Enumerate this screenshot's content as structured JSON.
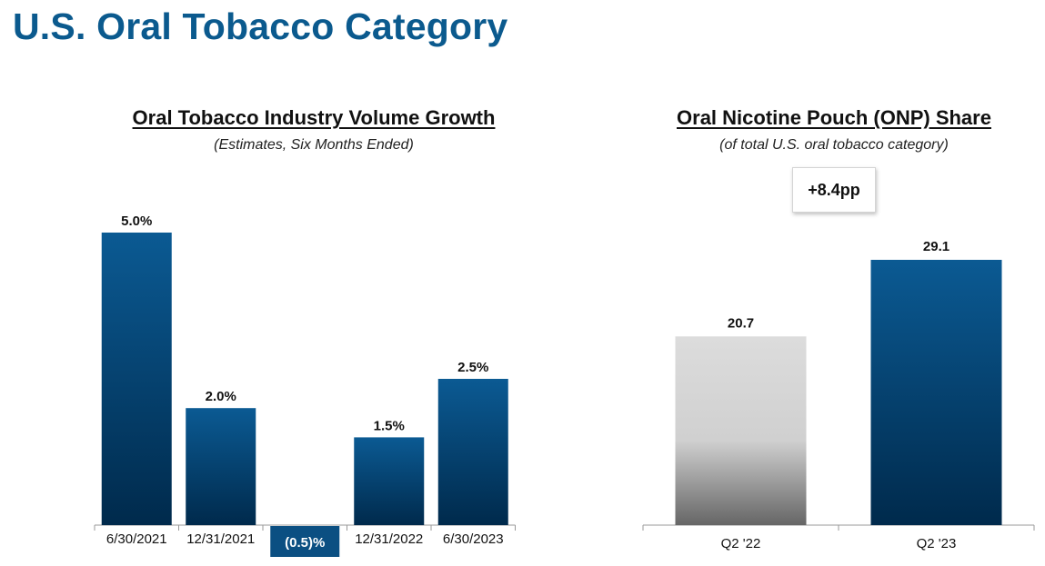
{
  "page": {
    "title": "U.S. Oral Tobacco Category"
  },
  "callout": {
    "text": "+8.4pp"
  },
  "chart_data": [
    {
      "type": "bar",
      "title": "Oral Tobacco Industry Volume Growth",
      "subtitle": "(Estimates, Six Months Ended)",
      "categories": [
        "6/30/2021",
        "12/31/2021",
        "(0.5)%",
        "12/31/2022",
        "6/30/2023"
      ],
      "values": [
        5.0,
        2.0,
        -0.5,
        1.5,
        2.5
      ],
      "data_labels": [
        "5.0%",
        "2.0%",
        "(0.5)%",
        "1.5%",
        "2.5%"
      ],
      "xlabel": "",
      "ylabel": "",
      "ylim": [
        0,
        5.0
      ],
      "grid": false,
      "colors": {
        "bar_top": "#0b5a93",
        "bar_bottom": "#002a4c",
        "highlight_box": "#0b4f82"
      }
    },
    {
      "type": "bar",
      "title": "Oral Nicotine Pouch (ONP) Share",
      "subtitle": "(of total U.S. oral tobacco category)",
      "categories": [
        "Q2 '22",
        "Q2 '23"
      ],
      "values": [
        20.7,
        29.1
      ],
      "data_labels": [
        "20.7",
        "29.1"
      ],
      "xlabel": "",
      "ylabel": "",
      "ylim": [
        0,
        29.1
      ],
      "grid": false,
      "colors": {
        "bar_q2_22_top": "#dcdcdc",
        "bar_q2_22_bottom": "#666666",
        "bar_q2_23_top": "#0b5a93",
        "bar_q2_23_bottom": "#002a4c"
      }
    }
  ]
}
